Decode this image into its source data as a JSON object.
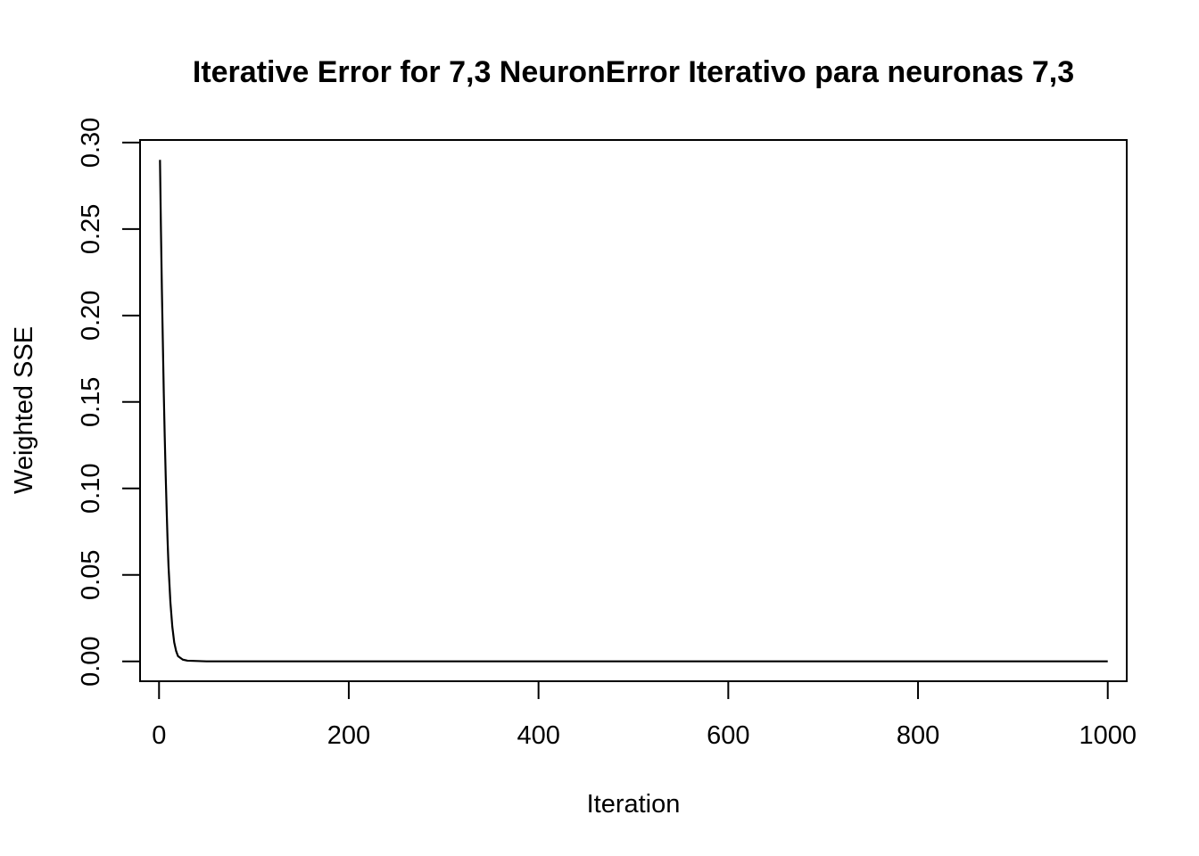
{
  "chart_data": {
    "type": "line",
    "title": "Iterative Error for 7,3 NeuronError Iterativo para neuronas 7,3",
    "xlabel": "Iteration",
    "ylabel": "Weighted SSE",
    "xlim": [
      -20,
      1020
    ],
    "ylim": [
      -0.0115,
      0.3015
    ],
    "x_ticks": [
      0,
      200,
      400,
      600,
      800,
      1000
    ],
    "x_tick_labels": [
      "0",
      "200",
      "400",
      "600",
      "800",
      "1000"
    ],
    "y_ticks": [
      0.0,
      0.05,
      0.1,
      0.15,
      0.2,
      0.25,
      0.3
    ],
    "y_tick_labels": [
      "0.00",
      "0.05",
      "0.10",
      "0.15",
      "0.20",
      "0.25",
      "0.30"
    ],
    "grid": false,
    "line_color": "#000000",
    "series": [
      {
        "x": [
          1,
          2,
          3,
          4,
          5,
          6,
          7,
          8,
          9,
          10,
          12,
          14,
          16,
          18,
          20,
          25,
          30,
          50,
          100,
          200,
          400,
          600,
          800,
          1000
        ],
        "values": [
          0.29,
          0.25,
          0.215,
          0.185,
          0.155,
          0.13,
          0.108,
          0.088,
          0.07,
          0.055,
          0.034,
          0.02,
          0.011,
          0.006,
          0.003,
          0.001,
          0.0004,
          0.0,
          0.0,
          0.0,
          0.0,
          0.0,
          0.0,
          0.0
        ]
      }
    ]
  }
}
